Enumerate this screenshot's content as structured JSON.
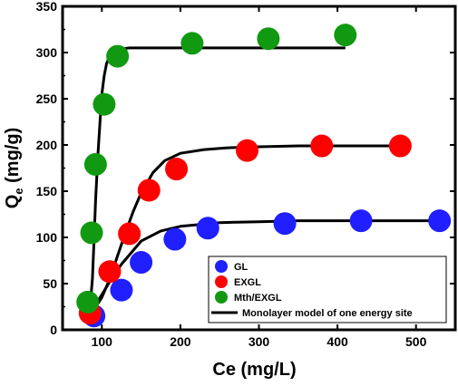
{
  "chart_data": {
    "type": "scatter",
    "xlabel": "Ce (mg/L)",
    "ylabel": {
      "main": "Q",
      "sub": "e",
      "unit": " (mg/g)"
    },
    "xlim": [
      50,
      550
    ],
    "ylim": [
      0,
      350
    ],
    "x_ticks": [
      100,
      200,
      300,
      400,
      500
    ],
    "y_ticks": [
      0,
      50,
      100,
      150,
      200,
      250,
      300,
      350
    ],
    "grid": false,
    "legend_position": "bottom-right",
    "series": [
      {
        "name": "GL",
        "color": "#1f1fff",
        "x": [
          90,
          125,
          150,
          193,
          235,
          333,
          430,
          530
        ],
        "y": [
          15,
          43,
          73,
          98,
          110,
          115,
          118,
          118
        ]
      },
      {
        "name": "EXGL",
        "color": "#ff0000",
        "x": [
          85,
          110,
          135,
          160,
          195,
          285,
          380,
          480
        ],
        "y": [
          18,
          63,
          104,
          151,
          174,
          194,
          199,
          199
        ]
      },
      {
        "name": "Mth/EXGL",
        "color": "#119911",
        "x": [
          82,
          87,
          92,
          103,
          120,
          215,
          312,
          410
        ],
        "y": [
          30,
          105,
          179,
          244,
          296,
          310,
          315,
          319
        ]
      }
    ],
    "fits": [
      {
        "name": "Monolayer model of one energy site",
        "color": "#000000",
        "x": [
          82,
          92,
          100,
          110,
          125,
          150,
          175,
          200,
          250,
          300,
          350,
          400,
          450,
          500,
          530
        ],
        "y": [
          17,
          27,
          38,
          52,
          71,
          96,
          107,
          112,
          116,
          117,
          118,
          118,
          118,
          118,
          118
        ]
      },
      {
        "name": "Monolayer model of one energy site",
        "color": "#000000",
        "x": [
          82,
          90,
          100,
          110,
          120,
          130,
          140,
          150,
          165,
          180,
          200,
          230,
          260,
          300,
          350,
          400,
          480
        ],
        "y": [
          18,
          22,
          35,
          55,
          80,
          105,
          128,
          148,
          170,
          183,
          191,
          195,
          197,
          198,
          199,
          199,
          199
        ]
      },
      {
        "name": "Monolayer model of one energy site",
        "color": "#000000",
        "x": [
          82,
          85,
          88,
          90,
          92,
          95,
          98,
          100,
          103,
          106,
          110,
          115,
          120,
          135,
          160,
          200,
          300,
          410
        ],
        "y": [
          20,
          25,
          55,
          95,
          140,
          190,
          230,
          255,
          275,
          288,
          296,
          301,
          303,
          305,
          305,
          305,
          305,
          305
        ]
      }
    ]
  }
}
